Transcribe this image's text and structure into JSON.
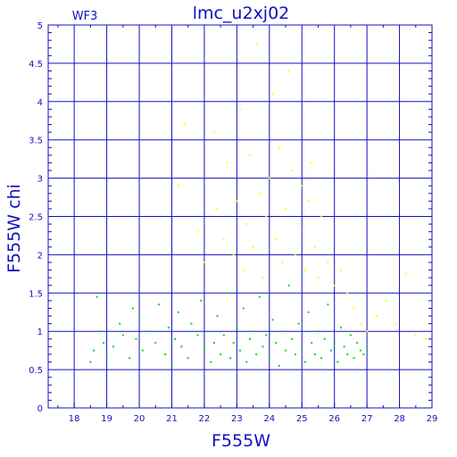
{
  "chart_data": {
    "type": "scatter",
    "title": "lmc_u2xj02",
    "panel_label": "WF3",
    "xlabel": "F555W",
    "ylabel": "F555W  chi",
    "xlim": [
      17.2,
      29.0
    ],
    "ylim": [
      0,
      5
    ],
    "xticks": [
      "18",
      "19",
      "20",
      "21",
      "22",
      "23",
      "24",
      "25",
      "26",
      "27",
      "28",
      "29"
    ],
    "yticks": [
      "0",
      "0.5",
      "1",
      "1.5",
      "2",
      "2.5",
      "3",
      "3.5",
      "4",
      "4.5",
      "5"
    ],
    "grid": true,
    "colors": {
      "axes": "#1010c0",
      "grid": "#1010c0",
      "bright_stars": "#00dd00",
      "faint_stars": "#ffff00"
    },
    "series": [
      {
        "description_key": "green",
        "color": "#00dd00",
        "points": [
          [
            18.5,
            0.6
          ],
          [
            18.6,
            0.75
          ],
          [
            18.7,
            1.45
          ],
          [
            18.8,
            1.0
          ],
          [
            18.9,
            0.85
          ],
          [
            19.0,
            0.7
          ],
          [
            19.2,
            0.8
          ],
          [
            19.4,
            1.1
          ],
          [
            19.5,
            0.95
          ],
          [
            19.7,
            0.65
          ],
          [
            19.8,
            1.3
          ],
          [
            19.9,
            0.9
          ],
          [
            20.0,
            1.2
          ],
          [
            20.1,
            0.75
          ],
          [
            20.3,
            1.0
          ],
          [
            20.5,
            0.85
          ],
          [
            20.6,
            1.35
          ],
          [
            20.8,
            0.7
          ],
          [
            20.9,
            1.05
          ],
          [
            21.0,
            0.55
          ],
          [
            21.1,
            0.9
          ],
          [
            21.2,
            1.25
          ],
          [
            21.3,
            0.8
          ],
          [
            21.5,
            0.65
          ],
          [
            21.6,
            1.1
          ],
          [
            21.8,
            0.95
          ],
          [
            21.9,
            1.4
          ],
          [
            22.0,
            0.75
          ],
          [
            22.1,
            1.0
          ],
          [
            22.2,
            0.6
          ],
          [
            22.3,
            0.85
          ],
          [
            22.4,
            1.2
          ],
          [
            22.5,
            0.7
          ],
          [
            22.6,
            0.95
          ],
          [
            22.7,
            1.5
          ],
          [
            22.8,
            0.65
          ],
          [
            22.9,
            0.85
          ],
          [
            23.0,
            1.05
          ],
          [
            23.1,
            0.75
          ],
          [
            23.2,
            1.3
          ],
          [
            23.3,
            0.6
          ],
          [
            23.4,
            0.9
          ],
          [
            23.5,
            1.0
          ],
          [
            23.6,
            0.7
          ],
          [
            23.7,
            1.45
          ],
          [
            23.8,
            0.8
          ],
          [
            23.9,
            0.95
          ],
          [
            24.0,
            0.65
          ],
          [
            24.1,
            1.15
          ],
          [
            24.2,
            0.85
          ],
          [
            24.3,
            0.55
          ],
          [
            24.4,
            1.0
          ],
          [
            24.5,
            0.75
          ],
          [
            24.6,
            1.6
          ],
          [
            24.7,
            0.9
          ],
          [
            24.8,
            0.7
          ],
          [
            24.9,
            1.1
          ],
          [
            25.0,
            0.8
          ],
          [
            25.1,
            0.6
          ],
          [
            25.2,
            1.25
          ],
          [
            25.3,
            0.85
          ],
          [
            25.4,
            0.7
          ],
          [
            25.5,
            1.0
          ],
          [
            25.6,
            0.65
          ],
          [
            25.7,
            0.9
          ],
          [
            25.8,
            1.35
          ],
          [
            25.9,
            0.75
          ],
          [
            26.0,
            0.85
          ],
          [
            26.1,
            0.6
          ],
          [
            26.2,
            1.05
          ],
          [
            26.3,
            0.8
          ],
          [
            26.4,
            0.7
          ],
          [
            26.5,
            0.95
          ],
          [
            26.6,
            0.65
          ],
          [
            26.7,
            0.85
          ],
          [
            26.8,
            0.75
          ],
          [
            26.9,
            0.7
          ],
          [
            27.0,
            0.8
          ]
        ]
      },
      {
        "description_key": "yellow",
        "color": "#ffff00",
        "points": [
          [
            21.2,
            2.9
          ],
          [
            21.4,
            3.7
          ],
          [
            21.8,
            2.3
          ],
          [
            22.0,
            1.9
          ],
          [
            22.3,
            3.6
          ],
          [
            22.4,
            2.6
          ],
          [
            22.6,
            2.2
          ],
          [
            22.7,
            3.2
          ],
          [
            22.9,
            2.0
          ],
          [
            23.0,
            2.7
          ],
          [
            23.1,
            3.9
          ],
          [
            23.2,
            1.8
          ],
          [
            23.3,
            2.4
          ],
          [
            23.4,
            3.3
          ],
          [
            23.5,
            2.1
          ],
          [
            23.6,
            4.75
          ],
          [
            23.7,
            2.8
          ],
          [
            23.8,
            1.7
          ],
          [
            23.9,
            2.5
          ],
          [
            24.0,
            3.0
          ],
          [
            24.1,
            4.1
          ],
          [
            24.2,
            2.2
          ],
          [
            24.3,
            3.4
          ],
          [
            24.4,
            1.9
          ],
          [
            24.5,
            2.6
          ],
          [
            24.6,
            4.4
          ],
          [
            24.7,
            3.1
          ],
          [
            24.8,
            2.0
          ],
          [
            24.9,
            2.4
          ],
          [
            25.0,
            2.9
          ],
          [
            25.1,
            1.8
          ],
          [
            25.2,
            2.7
          ],
          [
            25.3,
            3.2
          ],
          [
            25.4,
            2.1
          ],
          [
            25.5,
            1.7
          ],
          [
            25.6,
            2.5
          ],
          [
            25.8,
            1.9
          ],
          [
            26.0,
            1.6
          ],
          [
            26.2,
            1.8
          ],
          [
            26.4,
            1.5
          ],
          [
            26.6,
            1.3
          ],
          [
            26.8,
            1.1
          ],
          [
            27.0,
            1.0
          ],
          [
            27.3,
            1.2
          ],
          [
            27.6,
            1.4
          ],
          [
            27.9,
            1.1
          ],
          [
            28.2,
            1.75
          ],
          [
            28.5,
            0.95
          ],
          [
            28.8,
            0.9
          ]
        ]
      }
    ]
  }
}
